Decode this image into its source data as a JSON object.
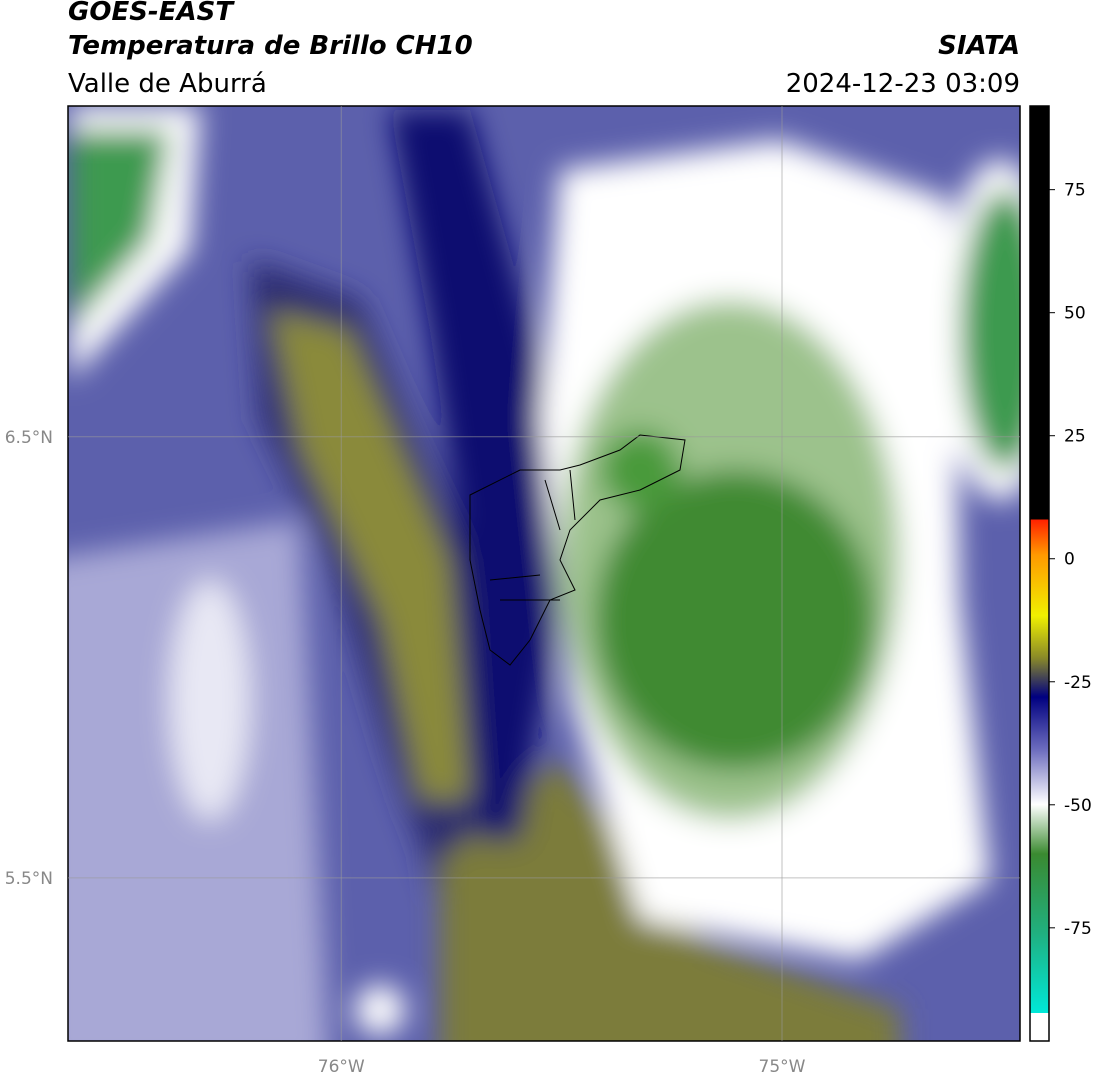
{
  "header": {
    "title": "GOES-EAST",
    "subtitle": "Temperatura de Brillo CH10",
    "region": "Valle de Aburrá",
    "agency": "SIATA",
    "timestamp": "2024-12-23 03:09"
  },
  "map": {
    "lon_lim": [
      -76.62,
      -74.46
    ],
    "lat_lim": [
      5.13,
      7.25
    ],
    "lat_ticks": [
      {
        "value": 6.5,
        "label": "6.5°N"
      },
      {
        "value": 5.5,
        "label": "5.5°N"
      }
    ],
    "lon_ticks": [
      {
        "value": -76,
        "label": "76°W"
      },
      {
        "value": -75,
        "label": "75°W"
      }
    ]
  },
  "colorbar": {
    "lim": [
      -98,
      92
    ],
    "ticks": [
      75,
      50,
      25,
      0,
      -25,
      -50,
      -75
    ]
  }
}
